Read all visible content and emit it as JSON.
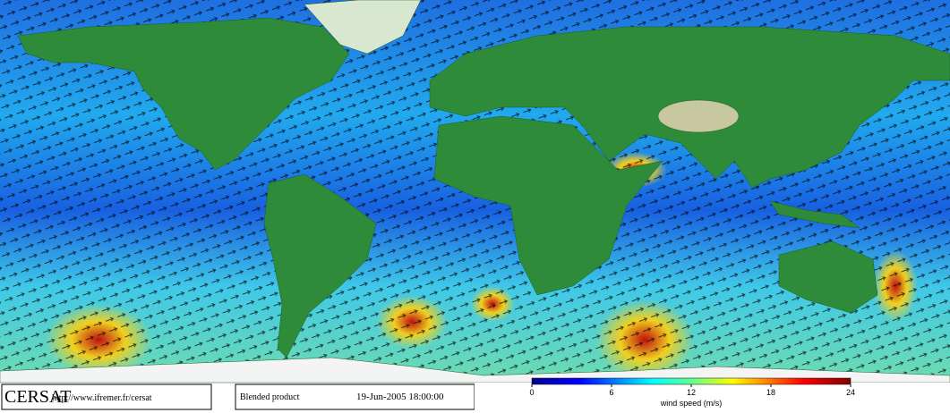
{
  "logo": "CERSAT",
  "url": "http://www.ifremer.fr/cersat",
  "product": "Blended product",
  "timestamp": "19-Jun-2005 18:00:00",
  "colorbar": {
    "label": "wind speed (m/s)",
    "range": [
      0,
      24
    ],
    "ticks": [
      0,
      6,
      12,
      18,
      24
    ]
  }
}
